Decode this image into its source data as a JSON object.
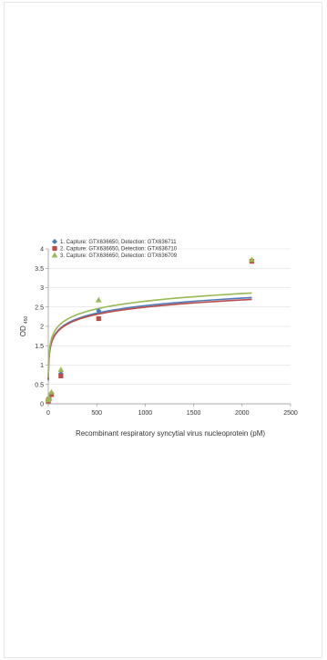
{
  "chart_data": {
    "type": "scatter",
    "xlabel": "Recombinant respiratory syncytial virus nucleoprotein  (pM)",
    "ylabel": "OD",
    "ylabel_sub": "450",
    "xlim": [
      0,
      2500
    ],
    "ylim": [
      0,
      4
    ],
    "xticks": [
      0,
      500,
      1000,
      1500,
      2000,
      2500
    ],
    "yticks": [
      0,
      0.5,
      1,
      1.5,
      2,
      2.5,
      3,
      3.5,
      4
    ],
    "ytick_labels": [
      "0",
      "0.5",
      "1",
      "1.5",
      "2",
      "2.5",
      "3",
      "3.5",
      "4"
    ],
    "grid": "horizontal",
    "legend": "top-left",
    "trendline": "logarithmic",
    "series": [
      {
        "name": "1. Capture: GTX636650, Detection: GTX636711",
        "marker": "diamond",
        "color": "#4a7ebb",
        "x": [
          0,
          2,
          8,
          33,
          130,
          520,
          2100
        ],
        "y": [
          0.08,
          0.1,
          0.14,
          0.27,
          0.78,
          2.4,
          3.7
        ],
        "fit": {
          "a": 0.28,
          "b": 0.6
        }
      },
      {
        "name": "2. Capture: GTX636650, Detection: GTX636710",
        "marker": "square",
        "color": "#be4b48",
        "x": [
          0,
          2,
          8,
          33,
          130,
          520,
          2100
        ],
        "y": [
          0.07,
          0.09,
          0.12,
          0.24,
          0.72,
          2.2,
          3.68
        ],
        "fit": {
          "a": 0.27,
          "b": 0.63
        }
      },
      {
        "name": "3. Capture: GTX636650, Detection: GTX636709",
        "marker": "triangle",
        "color": "#98b954",
        "x": [
          0,
          2,
          8,
          33,
          130,
          520,
          2100
        ],
        "y": [
          0.1,
          0.12,
          0.16,
          0.3,
          0.88,
          2.68,
          3.72
        ],
        "fit": {
          "a": 0.285,
          "b": 0.68
        }
      }
    ]
  }
}
